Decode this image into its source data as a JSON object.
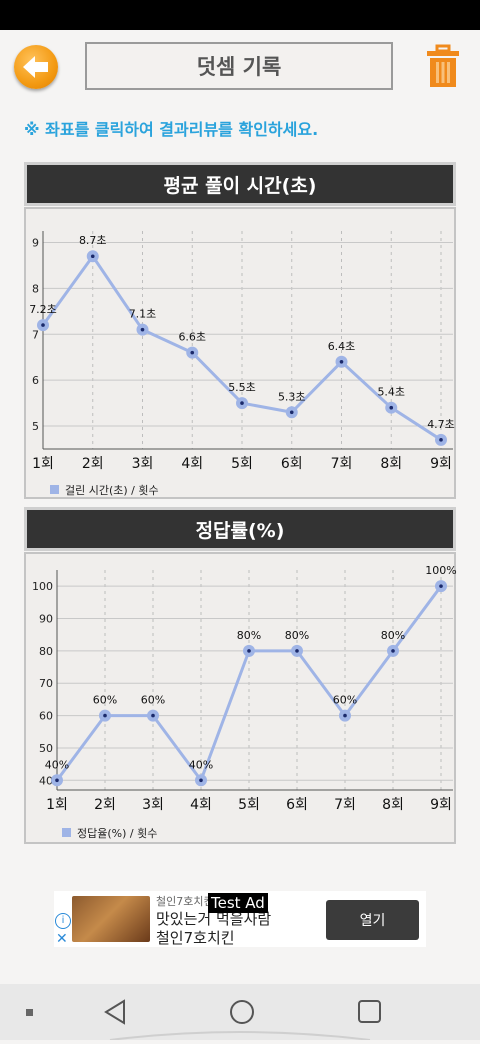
{
  "header": {
    "title": "덧셈 기록"
  },
  "notice": "※ 좌표를 클릭하여 결과리뷰를 확인하세요.",
  "colors": {
    "accent_blue": "#2aa3dc",
    "back_orange": "#f39a13",
    "trash_orange": "#f08a1c",
    "series_line": "#9fb4e6",
    "point_dot": "#1b2a6b",
    "header_bg": "#333333"
  },
  "icons": {
    "back": "arrow-left-icon",
    "trash": "trash-icon"
  },
  "chart_data": [
    {
      "type": "line",
      "title": "평균 풀이 시간(초)",
      "categories": [
        "1회",
        "2회",
        "3회",
        "4회",
        "5회",
        "6회",
        "7회",
        "8회",
        "9회"
      ],
      "values": [
        7.2,
        8.7,
        7.1,
        6.6,
        5.5,
        5.3,
        6.4,
        5.4,
        4.7
      ],
      "data_labels": [
        "7.2초",
        "8.7초",
        "7.1초",
        "6.6초",
        "5.5초",
        "5.3초",
        "6.4초",
        "5.4초",
        "4.7초"
      ],
      "yticks": [
        "5",
        "6",
        "7",
        "8",
        "9"
      ],
      "ylim": [
        4.5,
        9.25
      ],
      "grid": true,
      "legend": "걸린 시간(초) / 횟수",
      "legend_position": "bottom-left"
    },
    {
      "type": "line",
      "title": "정답률(%)",
      "categories": [
        "1회",
        "2회",
        "3회",
        "4회",
        "5회",
        "6회",
        "7회",
        "8회",
        "9회"
      ],
      "values": [
        40,
        60,
        60,
        40,
        80,
        80,
        60,
        80,
        100
      ],
      "data_labels": [
        "40%",
        "60%",
        "60%",
        "40%",
        "80%",
        "80%",
        "60%",
        "80%",
        "100%"
      ],
      "yticks": [
        "40",
        "50",
        "60",
        "70",
        "80",
        "90",
        "100"
      ],
      "ylim": [
        37,
        105
      ],
      "grid": true,
      "legend": "정답율(%) / 횟수",
      "legend_position": "bottom-left"
    }
  ],
  "ad": {
    "small_label": "철인7호치킨",
    "test_badge": "Test Ad",
    "line1": "맛있는거 먹을사람",
    "line2": "철인7호치킨",
    "button": "열기",
    "info_icon": "i",
    "close_icon": "✕"
  }
}
